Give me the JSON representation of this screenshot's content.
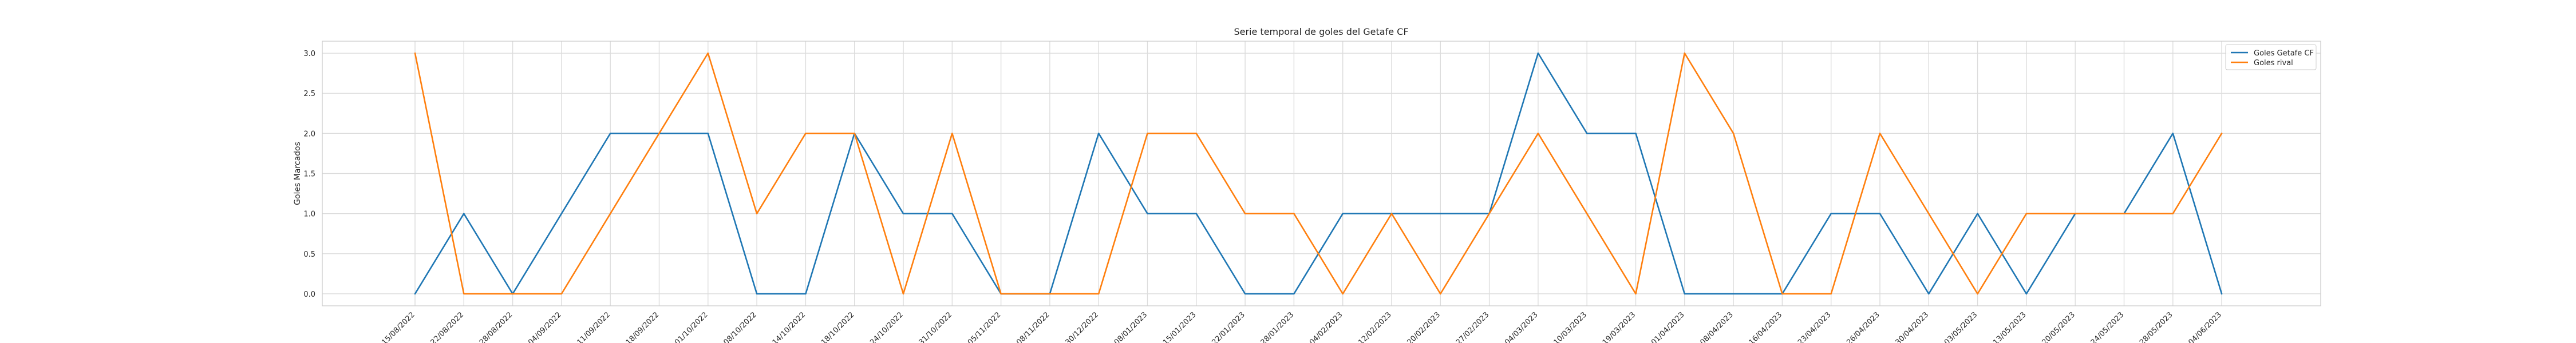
{
  "chart_data": {
    "type": "line",
    "title": "Serie temporal de goles del Getafe CF",
    "xlabel": "",
    "ylabel": "Goles Marcados",
    "ylim": [
      -0.15,
      3.15
    ],
    "yticks": [
      0.0,
      0.5,
      1.0,
      1.5,
      2.0,
      2.5,
      3.0
    ],
    "ytick_labels": [
      "0.0",
      "0.5",
      "1.0",
      "1.5",
      "2.0",
      "2.5",
      "3.0"
    ],
    "grid": true,
    "legend_position": "top-right",
    "x": [
      "15/08/2022",
      "22/08/2022",
      "28/08/2022",
      "04/09/2022",
      "11/09/2022",
      "18/09/2022",
      "01/10/2022",
      "08/10/2022",
      "14/10/2022",
      "18/10/2022",
      "24/10/2022",
      "31/10/2022",
      "05/11/2022",
      "08/11/2022",
      "30/12/2022",
      "08/01/2023",
      "15/01/2023",
      "22/01/2023",
      "28/01/2023",
      "04/02/2023",
      "12/02/2023",
      "20/02/2023",
      "27/02/2023",
      "04/03/2023",
      "10/03/2023",
      "19/03/2023",
      "01/04/2023",
      "08/04/2023",
      "16/04/2023",
      "23/04/2023",
      "26/04/2023",
      "30/04/2023",
      "03/05/2023",
      "13/05/2023",
      "20/05/2023",
      "24/05/2023",
      "28/05/2023",
      "04/06/2023"
    ],
    "series": [
      {
        "name": "Goles Getafe CF",
        "color": "#1f77b4",
        "values": [
          0,
          1,
          0,
          1,
          2,
          2,
          2,
          0,
          0,
          2,
          1,
          1,
          0,
          0,
          2,
          1,
          1,
          0,
          0,
          1,
          1,
          1,
          1,
          3,
          2,
          2,
          0,
          0,
          0,
          1,
          1,
          0,
          1,
          0,
          1,
          1,
          2,
          0
        ]
      },
      {
        "name": "Goles rival",
        "color": "#ff7f0e",
        "values": [
          3,
          0,
          0,
          0,
          1,
          2,
          3,
          1,
          2,
          2,
          0,
          2,
          0,
          0,
          0,
          2,
          2,
          1,
          1,
          0,
          1,
          0,
          1,
          2,
          1,
          0,
          3,
          2,
          0,
          0,
          2,
          1,
          0,
          1,
          1,
          1,
          1,
          2
        ]
      }
    ]
  }
}
